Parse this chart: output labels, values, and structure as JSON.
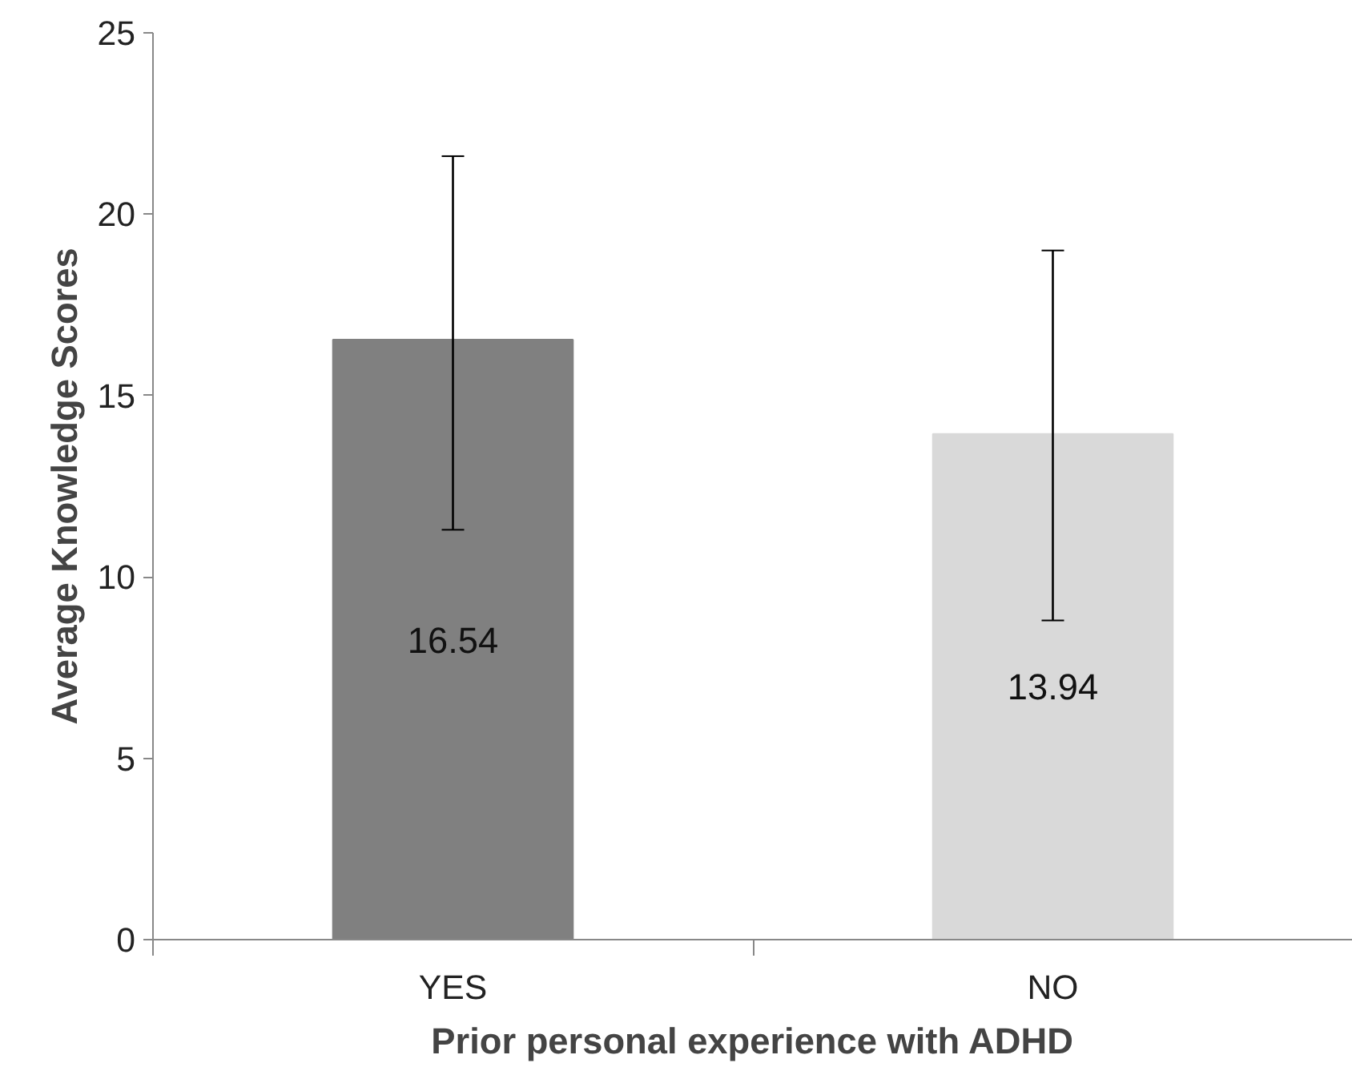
{
  "chart_data": {
    "type": "bar",
    "xlabel": "Prior personal experience with ADHD",
    "ylabel": "Average Knowledge Scores",
    "categories": [
      "YES",
      "NO"
    ],
    "values": [
      16.54,
      13.94
    ],
    "colors": [
      "#808080",
      "#d9d9d9"
    ],
    "errors": [
      [
        11.3,
        21.6
      ],
      [
        8.8,
        19.0
      ]
    ],
    "data_labels": true,
    "ylim": [
      0,
      25
    ],
    "yticks": [
      0,
      5,
      10,
      15,
      20,
      25
    ],
    "grid": false
  }
}
